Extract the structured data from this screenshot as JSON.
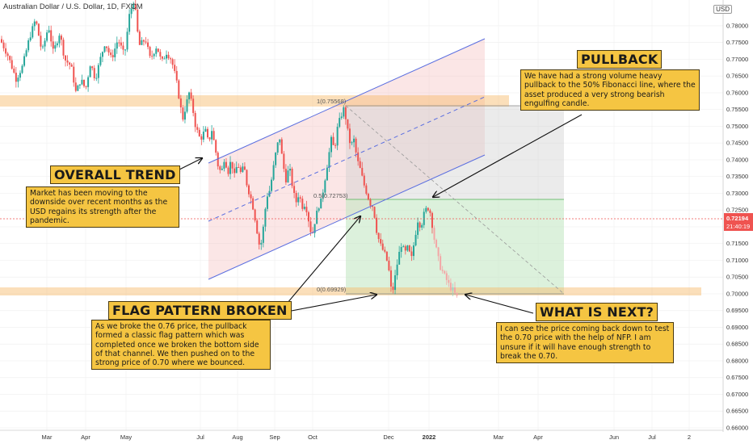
{
  "header": {
    "title": "Australian Dollar / U.S. Dollar, 1D, FXCM",
    "currency": "USD"
  },
  "annotations": {
    "pullback": {
      "heading": "PULLBACK",
      "text": "We have had a strong volume heavy pullback to the 50% Fibonacci line, where the asset produced a very strong bearish engulfing candle."
    },
    "overall": {
      "heading": "OVERALL TREND",
      "text": "Market has been moving to the downside over recent months as the USD regains its strength after the pandemic."
    },
    "flag": {
      "heading": "FLAG PATTERN BROKEN",
      "text": "As we broke the 0.76 price, the pullback formed a classic flag pattern which was completed once we broken the bottom side of that channel. We then pushed on to the strong price of 0.70 where we bounced."
    },
    "next": {
      "heading": "WHAT IS NEXT?",
      "text": "I can see the price coming back down to test the 0.70 price with the help of NFP. I am unsure if it will have enough strength to break the 0.70."
    }
  },
  "fib_labels": {
    "top": "1(0.75568)",
    "mid": "0.5(0.72753)",
    "bottom": "0(0.69929)"
  },
  "chart_data": {
    "type": "candlestick",
    "symbol": "AUDUSD",
    "timeframe": "1D",
    "source": "FXCM",
    "x_tick_labels": [
      "Mar",
      "Apr",
      "May",
      "Jul",
      "Aug",
      "Sep",
      "Oct",
      "Dec",
      "2022",
      "Mar",
      "Apr",
      "Jun",
      "Jul",
      "2"
    ],
    "y_range": [
      0.66,
      0.786
    ],
    "y_tick_labels": [
      "0.78000",
      "0.77500",
      "0.77000",
      "0.76500",
      "0.76000",
      "0.75500",
      "0.75000",
      "0.74500",
      "0.74000",
      "0.73500",
      "0.73000",
      "0.72500",
      "0.72000",
      "0.71500",
      "0.71000",
      "0.70500",
      "0.70000",
      "0.69500",
      "0.69000",
      "0.68500",
      "0.68000",
      "0.67500",
      "0.67000",
      "0.66500",
      "0.66000"
    ],
    "last_price": "0.72194",
    "countdown": "21:40:19",
    "levels": {
      "resistance": 0.7566,
      "support": 0.6995,
      "fib_1": 0.75568,
      "fib_05": 0.72753,
      "fib_0": 0.69929
    },
    "price_path": [
      [
        0,
        0.776
      ],
      [
        10,
        0.771
      ],
      [
        20,
        0.764
      ],
      [
        28,
        0.768
      ],
      [
        36,
        0.776
      ],
      [
        44,
        0.782
      ],
      [
        52,
        0.772
      ],
      [
        60,
        0.78
      ],
      [
        66,
        0.772
      ],
      [
        74,
        0.778
      ],
      [
        80,
        0.77
      ],
      [
        88,
        0.768
      ],
      [
        94,
        0.76
      ],
      [
        100,
        0.764
      ],
      [
        106,
        0.761
      ],
      [
        112,
        0.769
      ],
      [
        118,
        0.764
      ],
      [
        124,
        0.77
      ],
      [
        130,
        0.775
      ],
      [
        138,
        0.77
      ],
      [
        146,
        0.776
      ],
      [
        154,
        0.771
      ],
      [
        160,
        0.783
      ],
      [
        166,
        0.788
      ],
      [
        172,
        0.774
      ],
      [
        180,
        0.776
      ],
      [
        186,
        0.77
      ],
      [
        194,
        0.774
      ],
      [
        200,
        0.769
      ],
      [
        206,
        0.772
      ],
      [
        212,
        0.77
      ],
      [
        218,
        0.764
      ],
      [
        222,
        0.758
      ],
      [
        226,
        0.752
      ],
      [
        230,
        0.756
      ],
      [
        234,
        0.76
      ],
      [
        238,
        0.756
      ],
      [
        242,
        0.75
      ],
      [
        248,
        0.746
      ],
      [
        254,
        0.749
      ],
      [
        258,
        0.745
      ],
      [
        262,
        0.749
      ],
      [
        266,
        0.744
      ],
      [
        270,
        0.738
      ],
      [
        274,
        0.736
      ],
      [
        278,
        0.741
      ],
      [
        282,
        0.736
      ],
      [
        286,
        0.74
      ],
      [
        290,
        0.735
      ],
      [
        294,
        0.739
      ],
      [
        298,
        0.736
      ],
      [
        302,
        0.738
      ],
      [
        306,
        0.732
      ],
      [
        310,
        0.729
      ],
      [
        314,
        0.725
      ],
      [
        318,
        0.719
      ],
      [
        322,
        0.713
      ],
      [
        326,
        0.72
      ],
      [
        330,
        0.729
      ],
      [
        334,
        0.731
      ],
      [
        338,
        0.737
      ],
      [
        342,
        0.743
      ],
      [
        346,
        0.747
      ],
      [
        350,
        0.739
      ],
      [
        354,
        0.734
      ],
      [
        358,
        0.738
      ],
      [
        362,
        0.732
      ],
      [
        366,
        0.727
      ],
      [
        370,
        0.73
      ],
      [
        374,
        0.726
      ],
      [
        378,
        0.727
      ],
      [
        382,
        0.722
      ],
      [
        386,
        0.717
      ],
      [
        390,
        0.722
      ],
      [
        394,
        0.726
      ],
      [
        398,
        0.728
      ],
      [
        402,
        0.734
      ],
      [
        406,
        0.74
      ],
      [
        410,
        0.746
      ],
      [
        414,
        0.743
      ],
      [
        418,
        0.75
      ],
      [
        422,
        0.753
      ],
      [
        426,
        0.7556
      ],
      [
        430,
        0.749
      ],
      [
        434,
        0.744
      ],
      [
        438,
        0.746
      ],
      [
        442,
        0.74
      ],
      [
        446,
        0.737
      ],
      [
        450,
        0.733
      ],
      [
        454,
        0.73
      ],
      [
        458,
        0.727
      ],
      [
        462,
        0.726
      ],
      [
        466,
        0.719
      ],
      [
        470,
        0.715
      ],
      [
        474,
        0.713
      ],
      [
        478,
        0.711
      ],
      [
        482,
        0.706
      ],
      [
        485,
        0.6993
      ],
      [
        489,
        0.705
      ],
      [
        493,
        0.711
      ],
      [
        497,
        0.715
      ],
      [
        501,
        0.712
      ],
      [
        505,
        0.714
      ],
      [
        509,
        0.71
      ],
      [
        513,
        0.716
      ],
      [
        517,
        0.722
      ],
      [
        521,
        0.72
      ],
      [
        525,
        0.724
      ],
      [
        529,
        0.726
      ],
      [
        533,
        0.724
      ],
      [
        537,
        0.717
      ],
      [
        541,
        0.712
      ],
      [
        545,
        0.708
      ],
      [
        549,
        0.706
      ],
      [
        553,
        0.704
      ],
      [
        557,
        0.702
      ],
      [
        561,
        0.701
      ],
      [
        565,
        0.699
      ]
    ]
  }
}
